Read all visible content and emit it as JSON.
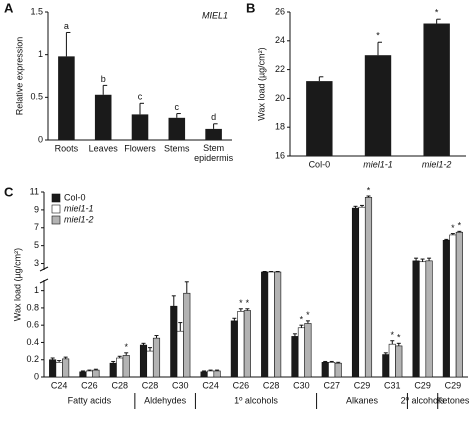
{
  "chart_data": [
    {
      "type": "bar",
      "panel": "A",
      "annotation_title": "MIEL1",
      "y_label": "Relative expression",
      "categories": [
        "Roots",
        "Leaves",
        "Flowers",
        "Stems",
        "Stem epidermis"
      ],
      "values": [
        0.98,
        0.53,
        0.3,
        0.26,
        0.13
      ],
      "errors": [
        0.28,
        0.11,
        0.13,
        0.05,
        0.06
      ],
      "annotations": [
        "a",
        "b",
        "c",
        "c",
        "d"
      ],
      "color": "#1a1a1a",
      "ylim": [
        0,
        1.5
      ],
      "yticks": [
        0,
        0.5,
        1,
        1.5
      ]
    },
    {
      "type": "bar",
      "panel": "B",
      "y_label": "Wax load (µg/cm²)",
      "categories": [
        "Col-0",
        "miel1-1",
        "miel1-2"
      ],
      "values": [
        21.2,
        23.0,
        25.2
      ],
      "errors": [
        0.3,
        0.9,
        0.3
      ],
      "annotations": [
        null,
        "*",
        "*"
      ],
      "color": "#1a1a1a",
      "ylim": [
        16,
        26
      ],
      "yticks": [
        16,
        18,
        20,
        22,
        24,
        26
      ]
    },
    {
      "type": "grouped_bar",
      "panel": "C",
      "y_label": "Wax load (µg/cm²)",
      "groups": [
        {
          "name": "Fatty acids",
          "categories": [
            "C24",
            "C26",
            "C28"
          ]
        },
        {
          "name": "Aldehydes",
          "categories": [
            "C28",
            "C30"
          ]
        },
        {
          "name": "1º alcohols",
          "categories": [
            "C24",
            "C26",
            "C28",
            "C30"
          ]
        },
        {
          "name": "Alkanes",
          "categories": [
            "C27",
            "C29",
            "C31"
          ]
        },
        {
          "name": "2º alcohols",
          "categories": [
            "C29"
          ]
        },
        {
          "name": "Ketones",
          "categories": [
            "C29"
          ]
        }
      ],
      "series": [
        {
          "name": "Col-0",
          "color": "#1a1a1a",
          "values": [
            0.2,
            0.06,
            0.16,
            0.37,
            0.82,
            0.06,
            0.65,
            2.1,
            0.47,
            0.17,
            9.2,
            0.26,
            3.3,
            5.6
          ],
          "errors": [
            0.02,
            0.01,
            0.02,
            0.02,
            0.12,
            0.01,
            0.03,
            0.05,
            0.03,
            0.01,
            0.2,
            0.02,
            0.3,
            0.1
          ],
          "annotations": [
            null,
            null,
            null,
            null,
            null,
            null,
            null,
            null,
            null,
            null,
            null,
            null,
            null,
            null
          ]
        },
        {
          "name": "miel1-1",
          "color": "#ffffff",
          "values": [
            0.17,
            0.07,
            0.22,
            0.3,
            0.53,
            0.07,
            0.76,
            2.1,
            0.57,
            0.17,
            9.3,
            0.38,
            3.2,
            6.2
          ],
          "errors": [
            0.02,
            0.01,
            0.02,
            0.04,
            0.1,
            0.01,
            0.03,
            0.05,
            0.03,
            0.01,
            0.2,
            0.04,
            0.3,
            0.15
          ],
          "annotations": [
            null,
            null,
            null,
            null,
            null,
            null,
            "*",
            null,
            "*",
            null,
            null,
            "*",
            null,
            "*"
          ]
        },
        {
          "name": "miel1-2",
          "color": "#b3b3b3",
          "values": [
            0.21,
            0.08,
            0.25,
            0.45,
            0.97,
            0.07,
            0.77,
            2.1,
            0.62,
            0.16,
            10.4,
            0.36,
            3.3,
            6.5
          ],
          "errors": [
            0.02,
            0.01,
            0.03,
            0.03,
            0.15,
            0.01,
            0.02,
            0.05,
            0.03,
            0.01,
            0.15,
            0.03,
            0.3,
            0.1
          ],
          "annotations": [
            null,
            null,
            "*",
            null,
            null,
            null,
            "*",
            null,
            "*",
            null,
            "*",
            "*",
            null,
            "*"
          ]
        }
      ],
      "legend": "upper-left",
      "ylim": [
        0,
        11
      ],
      "ybreak": [
        1.1,
        2.5
      ],
      "yticks": [
        0,
        0.2,
        0.4,
        0.6,
        0.8,
        1,
        3,
        5,
        7,
        9,
        11
      ]
    }
  ]
}
